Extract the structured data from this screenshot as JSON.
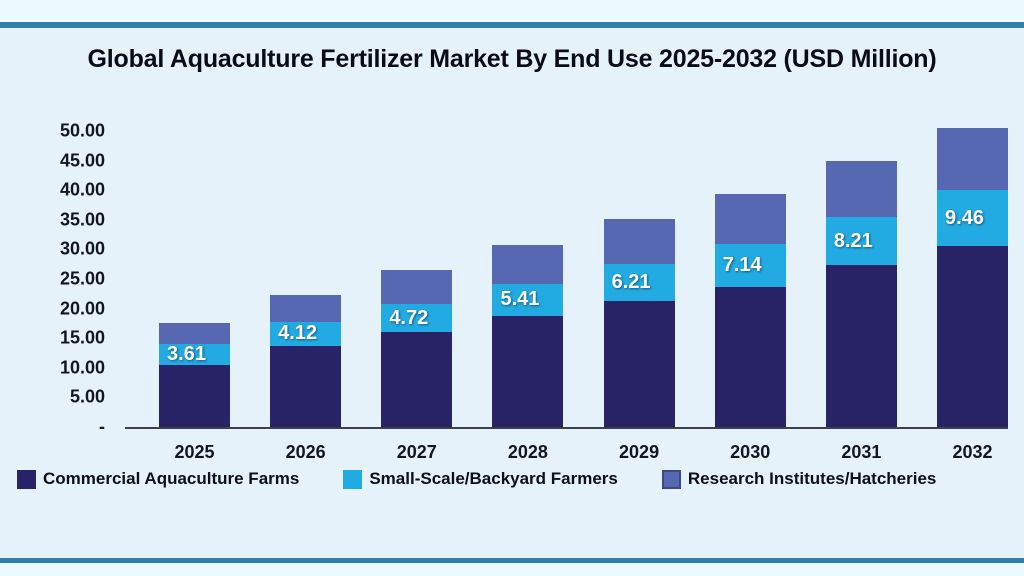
{
  "chart_data": {
    "type": "bar",
    "stacked": true,
    "title": "Global Aquaculture Fertilizer Market By End Use 2025-2032 (USD Million)",
    "units": "USD Million",
    "categories": [
      "2025",
      "2026",
      "2027",
      "2028",
      "2029",
      "2030",
      "2031",
      "2032"
    ],
    "series": [
      {
        "name": "Commercial Aquaculture Farms",
        "color": "#272366",
        "values": [
          10.4,
          13.7,
          16.0,
          18.8,
          21.3,
          23.7,
          27.3,
          30.5
        ]
      },
      {
        "name": "Small-Scale/Backyard Farmers",
        "color": "#22aae2",
        "values": [
          3.61,
          4.12,
          4.72,
          5.41,
          6.21,
          7.14,
          8.21,
          9.46
        ],
        "data_labels": [
          "3.61",
          "4.12",
          "4.72",
          "5.41",
          "6.21",
          "7.14",
          "8.21",
          "9.46"
        ]
      },
      {
        "name": "Research Institutes/Hatcheries",
        "color": "#5668b1",
        "values": [
          3.6,
          4.5,
          5.8,
          6.5,
          7.6,
          8.5,
          9.4,
          10.5
        ]
      }
    ],
    "ylim": [
      0,
      50
    ],
    "yticks": [
      {
        "label": "50.00",
        "value": 50
      },
      {
        "label": "45.00",
        "value": 45
      },
      {
        "label": "40.00",
        "value": 40
      },
      {
        "label": "35.00",
        "value": 35
      },
      {
        "label": "30.00",
        "value": 30
      },
      {
        "label": "25.00",
        "value": 25
      },
      {
        "label": "20.00",
        "value": 20
      },
      {
        "label": "15.00",
        "value": 15
      },
      {
        "label": "10.00",
        "value": 10
      },
      {
        "label": "5.00",
        "value": 5
      },
      {
        "label": "-",
        "value": 0
      }
    ],
    "grid": false,
    "legend_position": "bottom"
  }
}
